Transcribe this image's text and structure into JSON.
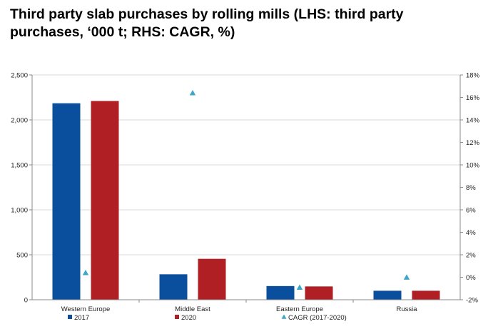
{
  "chart_data": {
    "type": "bar",
    "title": "Third party slab purchases by rolling mills (LHS: third party purchases, ‘000 t; RHS: CAGR, %)",
    "categories": [
      "Western Europe",
      "Middle East",
      "Eastern Europe",
      "Russia"
    ],
    "series": [
      {
        "name": "2017",
        "axis": "left",
        "type": "bar",
        "color": "#0a4f9e",
        "values": [
          2185,
          283,
          152,
          100
        ]
      },
      {
        "name": "2020",
        "axis": "left",
        "type": "bar",
        "color": "#b01f24",
        "values": [
          2210,
          455,
          148,
          100
        ]
      },
      {
        "name": "CAGR (2017-2020)",
        "axis": "right",
        "type": "scatter",
        "marker": "triangle",
        "color": "#3ea6c6",
        "values": [
          0.4,
          16.4,
          -0.9,
          0.0
        ]
      }
    ],
    "y_left": {
      "ylim": [
        0,
        2500
      ],
      "ticks": [
        "0",
        "500",
        "1,000",
        "1,500",
        "2,000",
        "2,500"
      ]
    },
    "y_right": {
      "ylim": [
        -2,
        18
      ],
      "ticks": [
        "-2%",
        "0%",
        "2%",
        "4%",
        "6%",
        "8%",
        "10%",
        "12%",
        "14%",
        "16%",
        "18%"
      ]
    },
    "grid": true,
    "legend_position": "bottom"
  }
}
